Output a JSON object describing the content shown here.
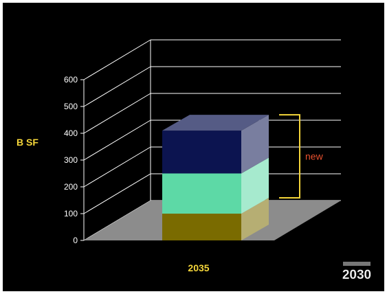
{
  "chart_data": {
    "type": "bar",
    "style": "3d-stacked",
    "categories": [
      "2035"
    ],
    "series": [
      {
        "values": [
          100
        ],
        "color": "#7a6b00"
      },
      {
        "values": [
          150
        ],
        "color": "#5dd9a6"
      },
      {
        "values": [
          160
        ],
        "color": "#0c1450"
      }
    ],
    "ylabel": "B SF",
    "xlabel": "2035",
    "ylim": [
      0,
      600
    ],
    "yticks": [
      0,
      100,
      200,
      300,
      400,
      500,
      600
    ],
    "grid": true,
    "annotation": {
      "text": "new",
      "spans_series": [
        1,
        2
      ]
    }
  },
  "colors": {
    "background": "#000000",
    "gridlines": "#ffffff",
    "floor": "#8c8c8c",
    "axis_label": "#f5d63a",
    "bracket": "#f5d63a",
    "annotation": "#e8502e",
    "tick_label": "#ffffff"
  },
  "logo": {
    "top": "",
    "main": "2030"
  }
}
